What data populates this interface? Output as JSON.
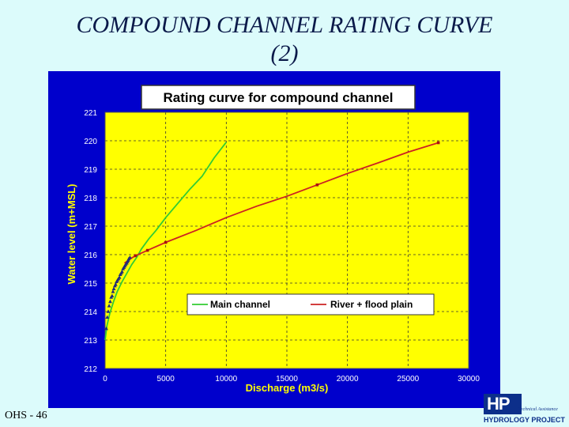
{
  "slide": {
    "title_line1": "COMPOUND CHANNEL RATING CURVE",
    "title_line2": "(2)",
    "footer_label": "OHS - 46",
    "logo_letters": "HP",
    "logo_subtext": "Technical Assistance",
    "logo_name": "HYDROLOGY PROJECT"
  },
  "colors": {
    "slide_background": "#dcfbfb",
    "panel_background": "#0000cc",
    "plot_background": "#ffff00",
    "main_channel": "#33cc33",
    "flood_plain": "#cc2222",
    "observations": "#1f2a7a",
    "axis_text": "#ffffff"
  },
  "chart_data": {
    "type": "line",
    "title": "Rating curve for compound channel",
    "xlabel": "Discharge (m3/s)",
    "ylabel": "Water level (m+MSL)",
    "xlim": [
      0,
      30000
    ],
    "ylim": [
      212,
      221
    ],
    "x_ticks": [
      0,
      5000,
      10000,
      15000,
      20000,
      25000,
      30000
    ],
    "x_tick_labels": [
      "0",
      "5000",
      "10000",
      "15000",
      "20000",
      "25000",
      "30000"
    ],
    "y_ticks": [
      212,
      213,
      214,
      215,
      216,
      217,
      218,
      219,
      220,
      221
    ],
    "y_tick_labels": [
      "212",
      "213",
      "214",
      "215",
      "216",
      "217",
      "218",
      "219",
      "220",
      "221"
    ],
    "grid": true,
    "legend_position": "bottom-right",
    "series": [
      {
        "name": "Main channel",
        "color": "#33cc33",
        "x": [
          0,
          150,
          400,
          700,
          1000,
          1400,
          1800,
          2200,
          2600,
          3000,
          3600,
          4200,
          5000,
          6000,
          7000,
          8000,
          9000,
          10000
        ],
        "y": [
          213.0,
          213.5,
          213.95,
          214.35,
          214.7,
          215.05,
          215.35,
          215.65,
          215.9,
          216.2,
          216.55,
          216.85,
          217.3,
          217.8,
          218.3,
          218.75,
          219.4,
          219.95
        ]
      },
      {
        "name": "River + flood plain",
        "color": "#cc2222",
        "x": [
          1600,
          2000,
          2500,
          3500,
          5000,
          7500,
          10000,
          12500,
          15000,
          17500,
          20000,
          22500,
          25000,
          27500
        ],
        "y": [
          215.7,
          215.83,
          215.96,
          216.15,
          216.43,
          216.85,
          217.3,
          217.7,
          218.05,
          218.45,
          218.85,
          219.22,
          219.6,
          219.93
        ]
      }
    ],
    "observations": {
      "x": [
        100,
        180,
        260,
        330,
        420,
        500,
        580,
        650,
        720,
        800,
        870,
        950,
        1020,
        1100,
        1180,
        1250,
        1330,
        1400,
        1480,
        1550,
        1620,
        1700,
        1780,
        1850,
        1900,
        1950,
        2050
      ],
      "y": [
        213.4,
        213.8,
        214.0,
        214.2,
        214.35,
        214.5,
        214.55,
        214.7,
        214.8,
        214.9,
        214.95,
        215.05,
        215.1,
        215.15,
        215.2,
        215.3,
        215.35,
        215.4,
        215.5,
        215.55,
        215.6,
        215.65,
        215.7,
        215.75,
        215.8,
        215.85,
        215.9
      ]
    },
    "flood_plain_markers": {
      "x": [
        2500,
        3500,
        5000,
        17500,
        27500
      ],
      "y": [
        215.96,
        216.15,
        216.43,
        218.45,
        219.93
      ]
    }
  }
}
